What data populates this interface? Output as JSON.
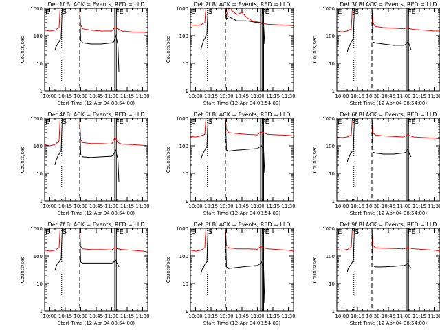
{
  "colors": {
    "events": "#000000",
    "lld": "#ff0000",
    "axis": "#000000",
    "background": "#ffffff"
  },
  "common": {
    "xlabel": "Start Time (12-Apr-04 08:54:00)",
    "ylabel": "Counts/sec",
    "x_ticks": [
      "10:00",
      "10:15",
      "10:30",
      "10:45",
      "11:00",
      "11:15",
      "11:30"
    ],
    "y_ticks": [
      "1",
      "10",
      "100",
      "1000"
    ]
  },
  "chart_data": [
    {
      "type": "line",
      "title": "Det 1f BLACK = Events, RED = LLD",
      "marker_labels": {
        "e_left": "E",
        "s": "S",
        "f": "F",
        "e_right": "E"
      },
      "xlim_min": [
        -5,
        95
      ],
      "ylim": [
        1,
        1000
      ],
      "yscale": "log",
      "dotted_lines_min": [
        11.5
      ],
      "dashed_lines_min": [
        29
      ],
      "solid_lines_min": [
        63,
        64.5,
        66
      ],
      "series": [
        {
          "color": "lld",
          "x": [
            -5,
            0,
            5,
            9,
            10,
            11,
            29,
            30,
            32,
            40,
            50,
            60,
            63,
            66,
            70,
            80,
            90,
            95
          ],
          "y": [
            160,
            150,
            160,
            200,
            1000,
            1000,
            1000,
            250,
            180,
            160,
            150,
            150,
            200,
            180,
            150,
            140,
            135,
            130
          ]
        },
        {
          "color": "events",
          "x": [
            5,
            6,
            7,
            8,
            9,
            10,
            11,
            12,
            13,
            29,
            30,
            32,
            40,
            50,
            60,
            62,
            64,
            65,
            66,
            67
          ],
          "y": [
            30,
            40,
            45,
            55,
            60,
            75,
            80,
            1000,
            1000,
            1000,
            70,
            55,
            50,
            50,
            55,
            60,
            100,
            70,
            50,
            5
          ]
        }
      ]
    },
    {
      "type": "line",
      "title": "Det 2f BLACK = Events, RED = LLD",
      "marker_labels": {
        "e_left": "E",
        "s": "S",
        "f": "F",
        "e_right": "E"
      },
      "xlim_min": [
        -5,
        95
      ],
      "ylim": [
        1,
        1000
      ],
      "yscale": "log",
      "dotted_lines_min": [
        11.5
      ],
      "dashed_lines_min": [
        29
      ],
      "solid_lines_min": [
        63,
        64.5,
        66
      ],
      "series": [
        {
          "color": "lld",
          "x": [
            -5,
            0,
            5,
            9,
            10,
            11,
            29,
            30,
            32,
            40,
            45,
            50,
            55,
            60,
            63,
            66,
            70,
            80,
            90,
            95
          ],
          "y": [
            250,
            240,
            250,
            300,
            1000,
            1000,
            1000,
            500,
            1000,
            600,
            700,
            450,
            350,
            320,
            300,
            280,
            260,
            250,
            240,
            230
          ]
        },
        {
          "color": "events",
          "x": [
            5,
            6,
            7,
            8,
            9,
            10,
            11,
            12,
            13,
            29,
            30,
            32,
            40,
            50,
            60,
            62,
            64,
            65,
            66,
            67
          ],
          "y": [
            30,
            40,
            55,
            70,
            80,
            100,
            120,
            1000,
            1000,
            1000,
            400,
            500,
            350,
            350,
            300,
            300,
            280,
            280,
            250,
            50
          ]
        }
      ]
    },
    {
      "type": "line",
      "title": "Det 3f BLACK = Events, RED = LLD",
      "marker_labels": {
        "e_left": "E",
        "s": "S",
        "f": "F",
        "e_right": "E"
      },
      "xlim_min": [
        -5,
        95
      ],
      "ylim": [
        1,
        1000
      ],
      "yscale": "log",
      "dotted_lines_min": [
        11.5
      ],
      "dashed_lines_min": [
        29
      ],
      "solid_lines_min": [
        63,
        64.5,
        66
      ],
      "series": [
        {
          "color": "lld",
          "x": [
            -5,
            0,
            5,
            9,
            10,
            11,
            29,
            30,
            32,
            40,
            50,
            60,
            63,
            66,
            70,
            80,
            90,
            95
          ],
          "y": [
            150,
            140,
            150,
            180,
            1000,
            1000,
            1000,
            300,
            220,
            200,
            190,
            180,
            200,
            180,
            170,
            160,
            150,
            150
          ]
        },
        {
          "color": "events",
          "x": [
            5,
            6,
            7,
            8,
            9,
            10,
            11,
            12,
            13,
            29,
            30,
            32,
            40,
            50,
            60,
            62,
            64,
            65,
            66,
            67
          ],
          "y": [
            25,
            35,
            40,
            50,
            60,
            70,
            80,
            1000,
            1000,
            1000,
            60,
            55,
            50,
            45,
            45,
            50,
            60,
            50,
            40,
            30
          ]
        }
      ]
    },
    {
      "type": "line",
      "title": "Det 4f BLACK = Events, RED = LLD",
      "marker_labels": {
        "e_left": "E",
        "s": "S",
        "f": "F",
        "e_right": "E"
      },
      "xlim_min": [
        -5,
        95
      ],
      "ylim": [
        1,
        1000
      ],
      "yscale": "log",
      "dotted_lines_min": [
        11.5
      ],
      "dashed_lines_min": [
        29
      ],
      "solid_lines_min": [
        63,
        64.5,
        66
      ],
      "series": [
        {
          "color": "lld",
          "x": [
            -5,
            0,
            5,
            9,
            10,
            11,
            29,
            30,
            32,
            40,
            50,
            60,
            63,
            66,
            70,
            80,
            90,
            95
          ],
          "y": [
            110,
            100,
            110,
            150,
            1000,
            1000,
            1000,
            170,
            130,
            120,
            120,
            115,
            200,
            130,
            115,
            110,
            105,
            100
          ]
        },
        {
          "color": "events",
          "x": [
            5,
            6,
            7,
            8,
            9,
            10,
            11,
            12,
            13,
            29,
            30,
            32,
            40,
            50,
            60,
            62,
            64,
            65,
            66,
            67
          ],
          "y": [
            20,
            30,
            35,
            45,
            50,
            60,
            65,
            1000,
            1000,
            1000,
            50,
            40,
            38,
            40,
            42,
            50,
            70,
            45,
            35,
            5
          ]
        }
      ]
    },
    {
      "type": "line",
      "title": "Det 5f BLACK = Events, RED = LLD",
      "marker_labels": {
        "e_left": "E",
        "s": "S",
        "f": "F",
        "e_right": "E"
      },
      "xlim_min": [
        -5,
        95
      ],
      "ylim": [
        1,
        1000
      ],
      "yscale": "log",
      "dotted_lines_min": [
        11.5
      ],
      "dashed_lines_min": [
        29
      ],
      "solid_lines_min": [
        63,
        64.5,
        66
      ],
      "series": [
        {
          "color": "lld",
          "x": [
            -5,
            0,
            5,
            9,
            10,
            11,
            29,
            30,
            32,
            40,
            50,
            60,
            63,
            66,
            70,
            80,
            90,
            95
          ],
          "y": [
            220,
            210,
            230,
            260,
            1000,
            1000,
            1000,
            400,
            300,
            280,
            260,
            250,
            320,
            300,
            260,
            250,
            240,
            230
          ]
        },
        {
          "color": "events",
          "x": [
            5,
            6,
            7,
            8,
            9,
            10,
            11,
            12,
            13,
            29,
            30,
            32,
            40,
            50,
            60,
            62,
            64,
            65,
            66,
            67
          ],
          "y": [
            30,
            40,
            50,
            60,
            70,
            85,
            90,
            1000,
            1000,
            1000,
            70,
            65,
            70,
            75,
            80,
            90,
            100,
            85,
            70,
            10
          ]
        }
      ]
    },
    {
      "type": "line",
      "title": "Det 6f BLACK = Events, RED = LLD",
      "marker_labels": {
        "e_left": "E",
        "s": "S",
        "f": "F",
        "e_right": "E"
      },
      "xlim_min": [
        -5,
        95
      ],
      "ylim": [
        1,
        1000
      ],
      "yscale": "log",
      "dotted_lines_min": [
        11.5
      ],
      "dashed_lines_min": [
        29
      ],
      "solid_lines_min": [
        63,
        64.5,
        66
      ],
      "series": [
        {
          "color": "lld",
          "x": [
            -5,
            0,
            5,
            9,
            10,
            11,
            29,
            30,
            32,
            40,
            50,
            60,
            63,
            66,
            70,
            80,
            90,
            95
          ],
          "y": [
            210,
            200,
            210,
            250,
            1000,
            1000,
            1000,
            300,
            250,
            230,
            220,
            210,
            260,
            230,
            210,
            200,
            190,
            180
          ]
        },
        {
          "color": "events",
          "x": [
            5,
            6,
            7,
            8,
            9,
            10,
            11,
            12,
            13,
            29,
            30,
            32,
            40,
            50,
            60,
            62,
            64,
            65,
            66,
            67
          ],
          "y": [
            25,
            35,
            40,
            50,
            55,
            65,
            70,
            1000,
            1000,
            1000,
            60,
            55,
            50,
            50,
            55,
            60,
            80,
            55,
            45,
            40
          ]
        }
      ]
    },
    {
      "type": "line",
      "title": "Det 7f BLACK = Events, RED = LLD",
      "marker_labels": {
        "e_left": "E",
        "s": "S",
        "f": "F",
        "e_right": "E"
      },
      "xlim_min": [
        -5,
        95
      ],
      "ylim": [
        1,
        1000
      ],
      "yscale": "log",
      "dotted_lines_min": [
        11.5
      ],
      "dashed_lines_min": [
        29
      ],
      "solid_lines_min": [
        63,
        64.5,
        66
      ],
      "series": [
        {
          "color": "lld",
          "x": [
            -5,
            0,
            5,
            9,
            10,
            11,
            29,
            30,
            32,
            40,
            50,
            60,
            63,
            66,
            70,
            80,
            90,
            95
          ],
          "y": [
            160,
            150,
            160,
            200,
            1000,
            1000,
            1000,
            220,
            180,
            170,
            170,
            165,
            200,
            180,
            170,
            160,
            150,
            140
          ]
        },
        {
          "color": "events",
          "x": [
            5,
            6,
            7,
            8,
            9,
            10,
            11,
            12,
            13,
            29,
            30,
            32,
            40,
            50,
            60,
            62,
            64,
            65,
            66,
            67
          ],
          "y": [
            30,
            40,
            50,
            55,
            60,
            70,
            75,
            1000,
            1000,
            1000,
            60,
            55,
            55,
            55,
            55,
            60,
            70,
            55,
            50,
            40
          ]
        }
      ]
    },
    {
      "type": "line",
      "title": "Det 8f BLACK = Events, RED = LLD",
      "marker_labels": {
        "e_left": "E",
        "s": "S",
        "f": "F",
        "e_right": "E"
      },
      "xlim_min": [
        -5,
        95
      ],
      "ylim": [
        1,
        1000
      ],
      "yscale": "log",
      "dotted_lines_min": [
        11.5
      ],
      "dashed_lines_min": [
        29
      ],
      "solid_lines_min": [
        63,
        64.5,
        66
      ],
      "series": [
        {
          "color": "lld",
          "x": [
            -5,
            0,
            5,
            9,
            10,
            11,
            29,
            30,
            32,
            40,
            50,
            60,
            63,
            66,
            70,
            80,
            90,
            95
          ],
          "y": [
            160,
            150,
            160,
            200,
            1000,
            1000,
            1000,
            250,
            200,
            180,
            180,
            175,
            220,
            200,
            180,
            170,
            160,
            150
          ]
        },
        {
          "color": "events",
          "x": [
            5,
            6,
            7,
            8,
            9,
            10,
            11,
            12,
            13,
            29,
            30,
            32,
            40,
            50,
            60,
            62,
            64,
            65,
            66,
            67
          ],
          "y": [
            20,
            30,
            35,
            40,
            50,
            55,
            60,
            1000,
            1000,
            1000,
            40,
            35,
            38,
            42,
            45,
            50,
            60,
            45,
            35,
            2
          ]
        }
      ]
    },
    {
      "type": "line",
      "title": "Det 9f BLACK = Events, RED = LLD",
      "marker_labels": {
        "e_left": "E",
        "s": "S",
        "f": "F",
        "e_right": "E"
      },
      "xlim_min": [
        -5,
        95
      ],
      "ylim": [
        1,
        1000
      ],
      "yscale": "log",
      "dotted_lines_min": [
        11.5
      ],
      "dashed_lines_min": [
        29
      ],
      "solid_lines_min": [
        63,
        64.5,
        66
      ],
      "series": [
        {
          "color": "lld",
          "x": [
            -5,
            0,
            5,
            9,
            10,
            11,
            29,
            30,
            32,
            40,
            50,
            60,
            63,
            66,
            70,
            80,
            90,
            95
          ],
          "y": [
            170,
            160,
            170,
            210,
            1000,
            1000,
            1000,
            250,
            200,
            190,
            185,
            180,
            200,
            190,
            180,
            170,
            160,
            150
          ]
        },
        {
          "color": "events",
          "x": [
            5,
            6,
            7,
            8,
            9,
            10,
            11,
            12,
            13,
            29,
            30,
            32,
            40,
            50,
            60,
            62,
            64,
            65,
            66,
            67
          ],
          "y": [
            25,
            35,
            40,
            45,
            50,
            60,
            65,
            1000,
            1000,
            1000,
            45,
            40,
            40,
            42,
            45,
            48,
            55,
            45,
            40,
            35
          ]
        }
      ]
    }
  ]
}
